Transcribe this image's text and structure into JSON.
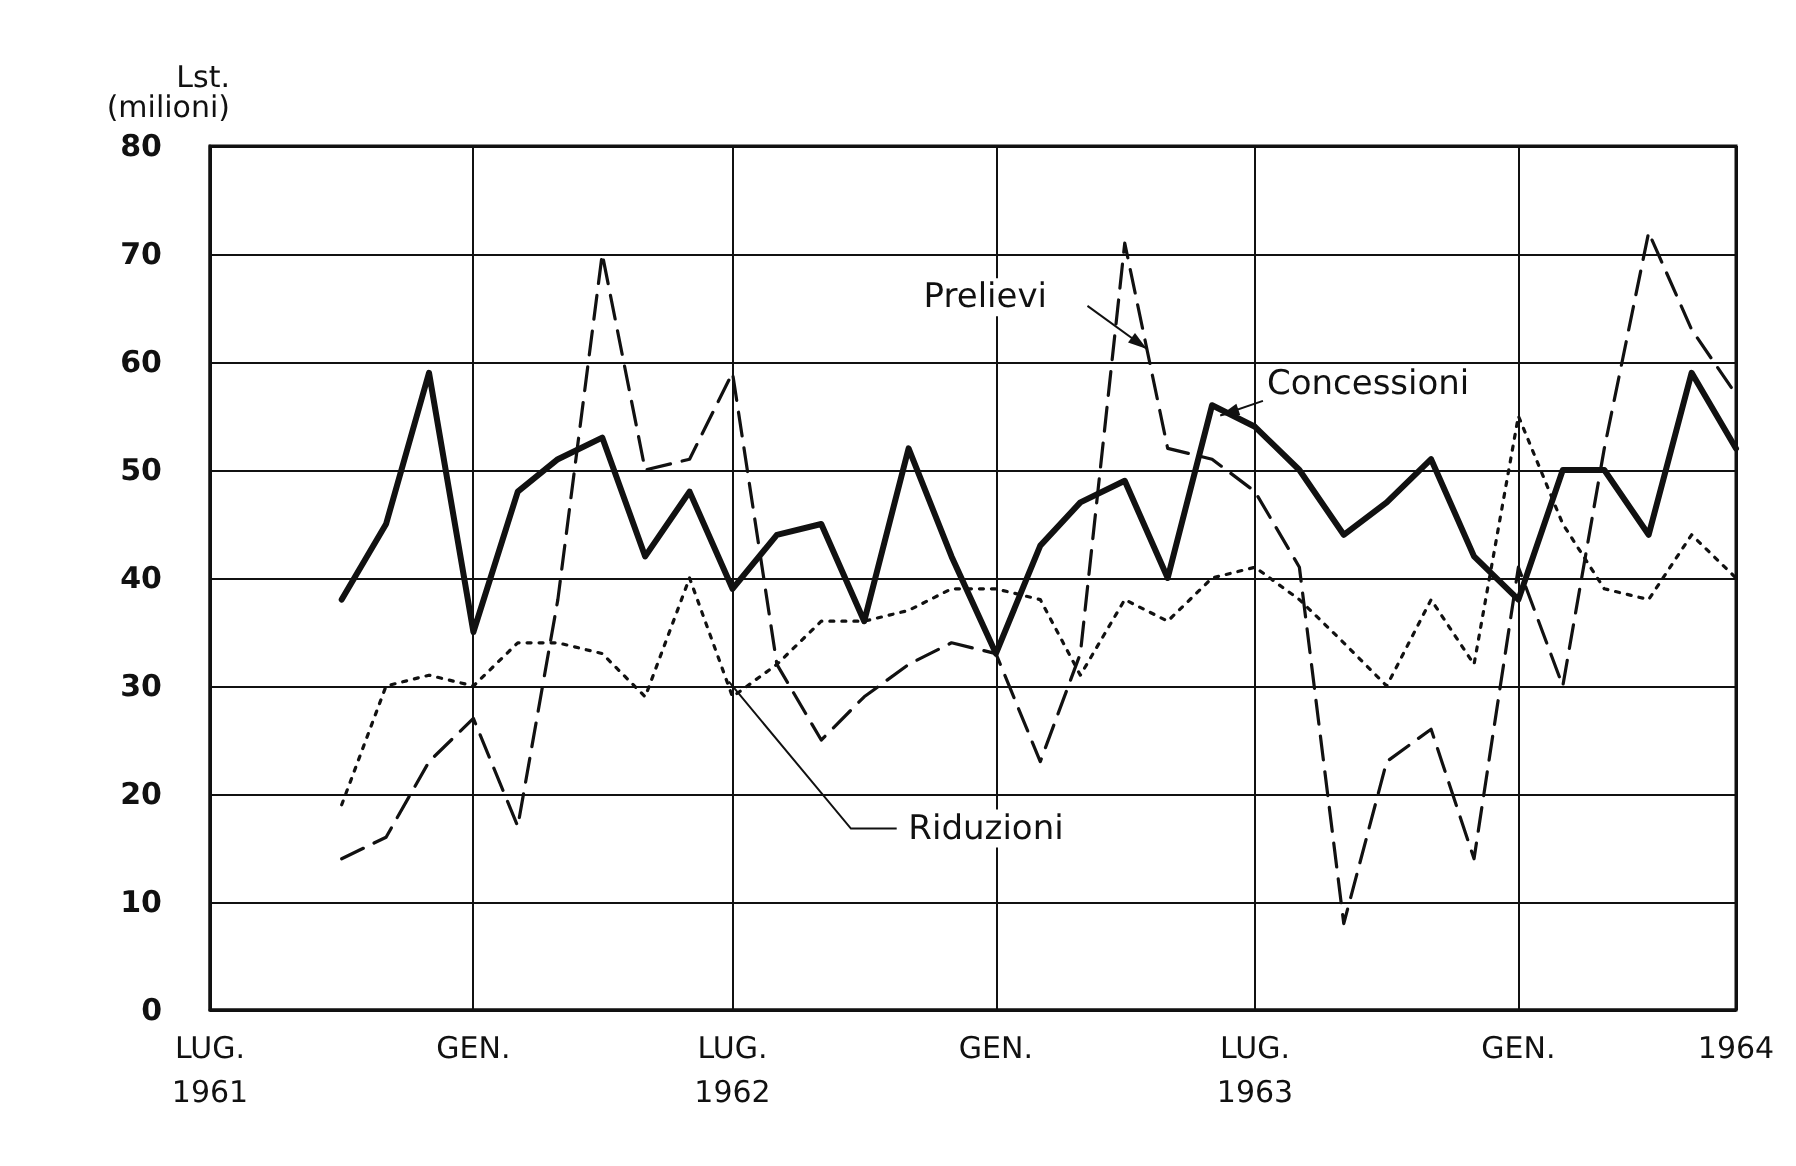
{
  "chart_data": {
    "type": "line",
    "ylabel": "Lst.\n(milioni)",
    "x": [
      "1961-10",
      "1961-11",
      "1961-12",
      "1962-01",
      "1962-02",
      "1962-03",
      "1962-04",
      "1962-05",
      "1962-06",
      "1962-07",
      "1962-08",
      "1962-09",
      "1962-10",
      "1962-11",
      "1962-12",
      "1963-01",
      "1963-02",
      "1963-03",
      "1963-04",
      "1963-05",
      "1963-06",
      "1963-07",
      "1963-08",
      "1963-09",
      "1963-10",
      "1963-11",
      "1963-12",
      "1964-01",
      "1964-02",
      "1964-03",
      "1964-04",
      "1964-05",
      "1964-06"
    ],
    "series": [
      {
        "name": "Concessioni",
        "color": "#111111",
        "line_style": "solid",
        "values": [
          38,
          45,
          59,
          35,
          48,
          51,
          53,
          42,
          48,
          39,
          44,
          45,
          36,
          52,
          42,
          33,
          43,
          47,
          49,
          40,
          56,
          54,
          50,
          44,
          47,
          51,
          42,
          38,
          50,
          50,
          44,
          59,
          52
        ]
      },
      {
        "name": "Prelievi",
        "color": "#111111",
        "line_style": "dashed",
        "values": [
          14,
          16,
          23,
          27,
          17,
          38,
          70,
          50,
          51,
          59,
          32,
          25,
          29,
          32,
          34,
          33,
          23,
          33,
          71,
          52,
          51,
          48,
          41,
          8,
          23,
          26,
          14,
          41,
          30,
          52,
          72,
          63,
          57
        ]
      },
      {
        "name": "Riduzioni",
        "color": "#111111",
        "line_style": "dotted",
        "values": [
          19,
          30,
          31,
          30,
          34,
          34,
          33,
          29,
          40,
          29,
          32,
          36,
          36,
          37,
          39,
          39,
          38,
          31,
          38,
          36,
          40,
          41,
          38,
          34,
          30,
          38,
          32,
          55,
          45,
          39,
          38,
          44,
          40
        ]
      }
    ],
    "xlim": [
      "1961-07",
      "1964-06"
    ],
    "xticks": [
      {
        "value": "1961-07",
        "label": "LUG.\n1961"
      },
      {
        "value": "1962-01",
        "label": "GEN."
      },
      {
        "value": "1962-07",
        "label": "LUG.\n1962"
      },
      {
        "value": "1963-01",
        "label": "GEN."
      },
      {
        "value": "1963-07",
        "label": "LUG.\n1963"
      },
      {
        "value": "1964-01",
        "label": "GEN."
      },
      {
        "value": "1964-06",
        "label": "1964"
      }
    ],
    "ylim": [
      0,
      80
    ],
    "yticks": [
      0,
      10,
      20,
      30,
      40,
      50,
      60,
      70,
      80
    ],
    "grid": true,
    "legend": false,
    "marker": "none"
  }
}
